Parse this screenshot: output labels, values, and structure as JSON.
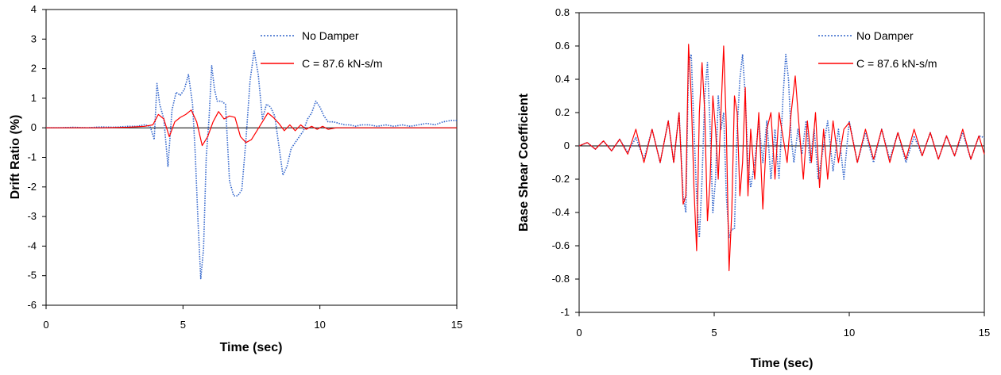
{
  "chart_data": [
    {
      "type": "line",
      "title": "",
      "xlabel": "Time (sec)",
      "ylabel": "Drift Ratio (%)",
      "xlim": [
        0,
        15
      ],
      "ylim": [
        -6,
        4
      ],
      "xticks": [
        0,
        5,
        10,
        15
      ],
      "yticks": [
        -6,
        -5,
        -4,
        -3,
        -2,
        -1,
        0,
        1,
        2,
        3,
        4
      ],
      "grid": false,
      "legend_position": "top-right",
      "series": [
        {
          "name": "No Damper",
          "color": "#3366cc",
          "style": "dotted",
          "x": [
            0,
            0.5,
            1,
            1.5,
            2,
            2.5,
            3,
            3.3,
            3.6,
            3.8,
            3.95,
            4.05,
            4.15,
            4.3,
            4.45,
            4.6,
            4.75,
            4.9,
            5.05,
            5.2,
            5.35,
            5.45,
            5.55,
            5.65,
            5.75,
            5.85,
            5.95,
            6.05,
            6.15,
            6.25,
            6.4,
            6.55,
            6.7,
            6.85,
            7.0,
            7.15,
            7.3,
            7.45,
            7.6,
            7.75,
            7.9,
            8.05,
            8.2,
            8.35,
            8.5,
            8.65,
            8.8,
            8.95,
            9.1,
            9.25,
            9.4,
            9.55,
            9.7,
            9.85,
            10.0,
            10.15,
            10.3,
            10.5,
            10.7,
            10.9,
            11.1,
            11.3,
            11.5,
            11.8,
            12.1,
            12.4,
            12.7,
            13.0,
            13.3,
            13.6,
            13.9,
            14.2,
            14.5,
            14.8,
            15.0
          ],
          "y": [
            0,
            0,
            0.02,
            0,
            0.03,
            0.02,
            0.05,
            0.05,
            0.1,
            0.05,
            -0.4,
            1.5,
            0.8,
            0.3,
            -1.3,
            0.6,
            1.2,
            1.1,
            1.3,
            1.8,
            0.8,
            -0.9,
            -3.2,
            -5.1,
            -4.1,
            -1.0,
            0.3,
            2.1,
            1.3,
            0.9,
            0.9,
            0.8,
            -1.8,
            -2.3,
            -2.3,
            -2.1,
            -0.4,
            1.6,
            2.6,
            1.8,
            0.3,
            0.8,
            0.7,
            0.4,
            -0.6,
            -1.6,
            -1.3,
            -0.7,
            -0.5,
            -0.3,
            -0.1,
            0.3,
            0.5,
            0.9,
            0.7,
            0.4,
            0.2,
            0.2,
            0.15,
            0.1,
            0.1,
            0.05,
            0.1,
            0.1,
            0.05,
            0.1,
            0.05,
            0.1,
            0.05,
            0.1,
            0.15,
            0.1,
            0.2,
            0.25,
            0.25
          ]
        },
        {
          "name": "C = 87.6 kN-s/m",
          "color": "#ff0000",
          "style": "solid",
          "x": [
            0,
            1,
            2,
            3,
            3.6,
            3.9,
            4.1,
            4.3,
            4.5,
            4.7,
            4.9,
            5.1,
            5.3,
            5.5,
            5.7,
            5.9,
            6.1,
            6.3,
            6.5,
            6.7,
            6.9,
            7.1,
            7.3,
            7.5,
            7.7,
            7.9,
            8.1,
            8.3,
            8.5,
            8.7,
            8.9,
            9.1,
            9.3,
            9.5,
            9.7,
            9.9,
            10.1,
            10.3,
            10.6,
            11,
            11.5,
            12,
            13,
            14,
            15
          ],
          "y": [
            0,
            0,
            0,
            0.02,
            0.05,
            0.1,
            0.45,
            0.3,
            -0.3,
            0.2,
            0.35,
            0.45,
            0.6,
            0.2,
            -0.6,
            -0.3,
            0.2,
            0.55,
            0.3,
            0.4,
            0.35,
            -0.3,
            -0.5,
            -0.4,
            -0.1,
            0.2,
            0.5,
            0.35,
            0.15,
            -0.1,
            0.1,
            -0.1,
            0.1,
            -0.05,
            0.05,
            -0.05,
            0.05,
            -0.05,
            0,
            0,
            0,
            0,
            0,
            0,
            0
          ]
        }
      ]
    },
    {
      "type": "line",
      "title": "",
      "xlabel": "Time (sec)",
      "ylabel": "Base Shear Coefficient",
      "xlim": [
        0,
        15
      ],
      "ylim": [
        -1,
        0.8
      ],
      "xticks": [
        0,
        5,
        10,
        15
      ],
      "yticks": [
        -1,
        -0.8,
        -0.6,
        -0.4,
        -0.2,
        0,
        0.2,
        0.4,
        0.6,
        0.8
      ],
      "grid": false,
      "legend_position": "top-right",
      "series": [
        {
          "name": "No Damper",
          "color": "#3366cc",
          "style": "dotted",
          "x": [
            0,
            0.3,
            0.6,
            0.9,
            1.2,
            1.5,
            1.8,
            2.1,
            2.4,
            2.7,
            3.0,
            3.3,
            3.5,
            3.7,
            3.85,
            3.95,
            4.05,
            4.15,
            4.25,
            4.35,
            4.45,
            4.55,
            4.65,
            4.75,
            4.85,
            4.95,
            5.05,
            5.15,
            5.25,
            5.35,
            5.45,
            5.55,
            5.65,
            5.75,
            5.85,
            5.95,
            6.05,
            6.15,
            6.25,
            6.35,
            6.5,
            6.65,
            6.8,
            6.95,
            7.1,
            7.25,
            7.4,
            7.55,
            7.65,
            7.75,
            7.85,
            7.95,
            8.1,
            8.25,
            8.4,
            8.55,
            8.7,
            8.85,
            9.0,
            9.2,
            9.4,
            9.6,
            9.8,
            10.0,
            10.3,
            10.6,
            10.9,
            11.2,
            11.5,
            11.8,
            12.1,
            12.4,
            12.7,
            13.0,
            13.3,
            13.6,
            13.9,
            14.2,
            14.5,
            14.8,
            15.0
          ],
          "y": [
            0,
            0.02,
            -0.02,
            0.03,
            -0.03,
            0.04,
            -0.04,
            0.05,
            -0.08,
            0.1,
            -0.1,
            0.15,
            -0.1,
            0.2,
            -0.3,
            -0.4,
            0.5,
            0.55,
            0.1,
            -0.3,
            -0.55,
            -0.2,
            0.3,
            0.5,
            0.1,
            -0.4,
            -0.2,
            0.3,
            0.1,
            0.2,
            -0.3,
            -0.55,
            -0.5,
            -0.5,
            0.1,
            0.4,
            0.55,
            0.3,
            -0.1,
            -0.25,
            -0.1,
            0.15,
            -0.1,
            0.15,
            -0.2,
            0.1,
            -0.2,
            0.3,
            0.55,
            0.4,
            0.05,
            -0.1,
            0.1,
            -0.05,
            0.15,
            -0.1,
            0.1,
            -0.2,
            -0.05,
            0.15,
            -0.15,
            0.1,
            -0.2,
            0.15,
            -0.1,
            0.08,
            -0.1,
            0.1,
            -0.08,
            0.08,
            -0.1,
            0.06,
            -0.06,
            0.08,
            -0.08,
            0.06,
            -0.06,
            0.08,
            -0.08,
            0.06,
            0.05
          ]
        },
        {
          "name": "C = 87.6 kN-s/m",
          "color": "#ff0000",
          "style": "solid",
          "x": [
            0,
            0.3,
            0.6,
            0.9,
            1.2,
            1.5,
            1.8,
            2.1,
            2.4,
            2.7,
            3.0,
            3.3,
            3.5,
            3.7,
            3.85,
            3.95,
            4.05,
            4.15,
            4.25,
            4.35,
            4.45,
            4.55,
            4.65,
            4.75,
            4.85,
            4.95,
            5.05,
            5.15,
            5.25,
            5.35,
            5.45,
            5.55,
            5.65,
            5.75,
            5.85,
            5.95,
            6.05,
            6.15,
            6.25,
            6.35,
            6.5,
            6.65,
            6.8,
            6.95,
            7.1,
            7.25,
            7.4,
            7.55,
            7.7,
            7.85,
            8.0,
            8.15,
            8.3,
            8.45,
            8.6,
            8.75,
            8.9,
            9.05,
            9.2,
            9.4,
            9.6,
            9.8,
            10.0,
            10.3,
            10.6,
            10.9,
            11.2,
            11.5,
            11.8,
            12.1,
            12.4,
            12.7,
            13.0,
            13.3,
            13.6,
            13.9,
            14.2,
            14.5,
            14.8,
            15.0
          ],
          "y": [
            0,
            0.02,
            -0.02,
            0.03,
            -0.03,
            0.04,
            -0.05,
            0.1,
            -0.1,
            0.1,
            -0.1,
            0.15,
            -0.1,
            0.2,
            -0.35,
            -0.3,
            0.61,
            0.3,
            -0.25,
            -0.63,
            0.2,
            0.5,
            0.2,
            -0.45,
            -0.2,
            0.3,
            0.1,
            -0.2,
            0.2,
            0.6,
            0.1,
            -0.75,
            -0.4,
            0.3,
            0.2,
            -0.3,
            -0.1,
            0.35,
            -0.3,
            0.1,
            -0.2,
            0.2,
            -0.38,
            0.1,
            0.2,
            -0.2,
            0.2,
            0.05,
            -0.1,
            0.2,
            0.42,
            0.1,
            -0.2,
            0.15,
            -0.1,
            0.2,
            -0.25,
            0.1,
            -0.2,
            0.15,
            -0.1,
            0.1,
            0.14,
            -0.1,
            0.1,
            -0.08,
            0.1,
            -0.1,
            0.08,
            -0.08,
            0.1,
            -0.06,
            0.08,
            -0.08,
            0.06,
            -0.06,
            0.1,
            -0.08,
            0.06,
            -0.05
          ]
        }
      ]
    }
  ]
}
